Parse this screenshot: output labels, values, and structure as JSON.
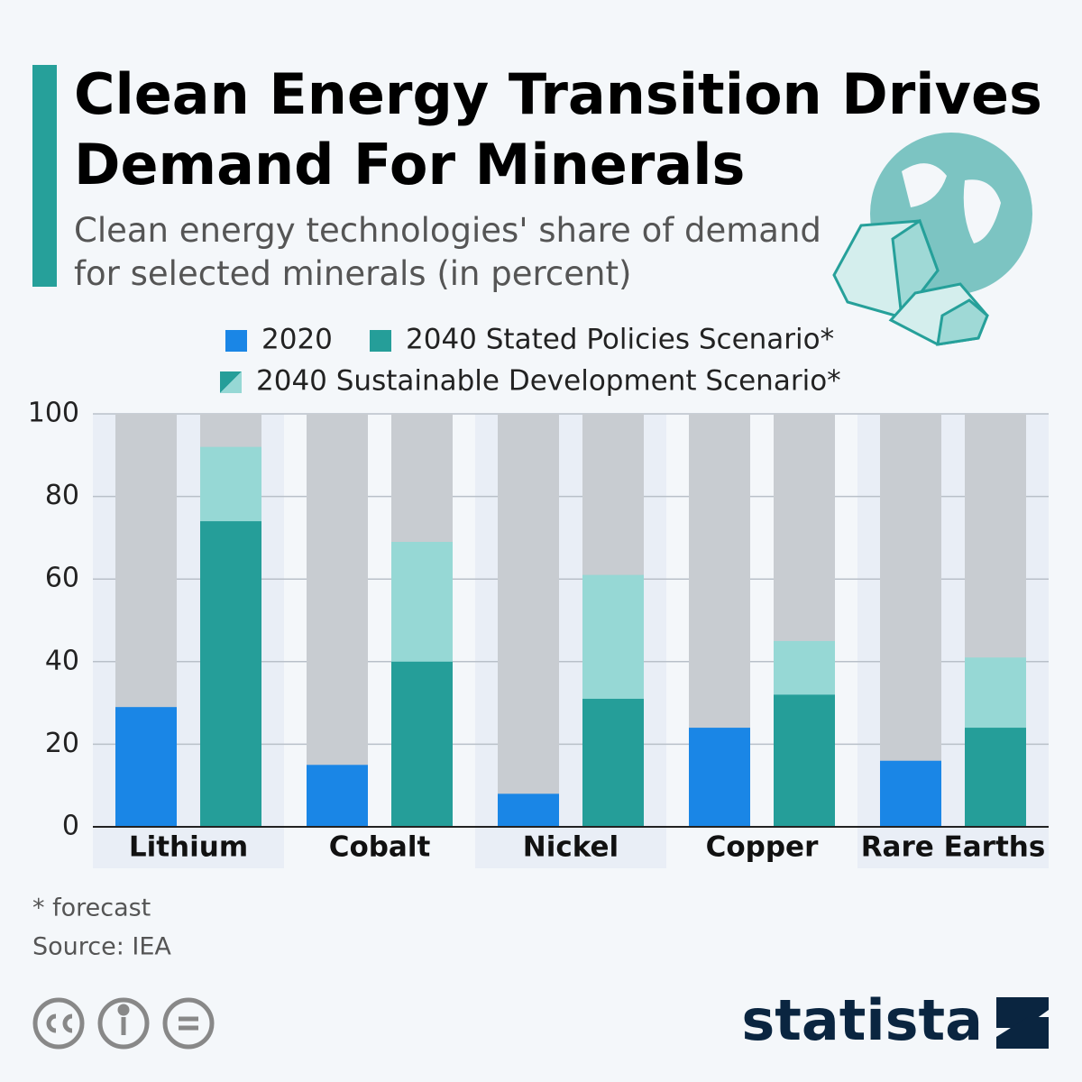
{
  "chart_data": {
    "type": "bar",
    "title": "Clean Energy Transition Drives Demand For Minerals",
    "subtitle": "Clean energy technologies' share of demand for selected minerals (in percent)",
    "categories": [
      "Lithium",
      "Cobalt",
      "Nickel",
      "Copper",
      "Rare Earths"
    ],
    "series": [
      {
        "name": "2020",
        "color": "#1a86e6",
        "values": [
          29,
          15,
          8,
          24,
          16
        ]
      },
      {
        "name": "2040 Stated Policies Scenario*",
        "color": "#259e99",
        "values": [
          74,
          40,
          31,
          32,
          24
        ]
      },
      {
        "name": "2040 Sustainable Development Scenario*",
        "color": "#96d8d5",
        "values": [
          92,
          69,
          61,
          45,
          41
        ]
      }
    ],
    "ylim": [
      0,
      100
    ],
    "yticks": [
      0,
      20,
      40,
      60,
      80,
      100
    ],
    "grid": true,
    "note": "* forecast",
    "source": "Source: IEA"
  },
  "brand": "statista"
}
